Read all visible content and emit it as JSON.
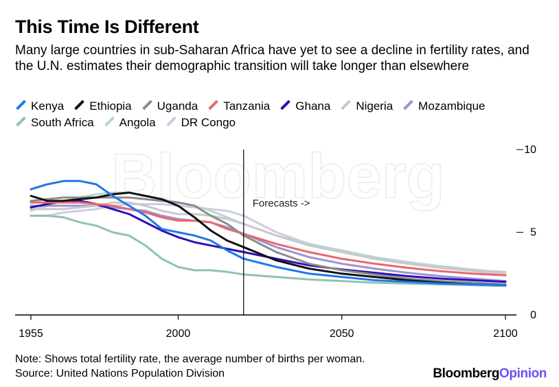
{
  "header": {
    "title": "This Time Is Different",
    "subtitle": "Many large countries in sub-Saharan Africa have yet to see a decline in fertility rates, and the U.N. estimates their demographic transition will take longer than elsewhere"
  },
  "footer": {
    "note": "Note: Shows total fertility rate, the average number of births per woman.",
    "source": "Source: United Nations Population Division",
    "logo_main": "Bloomberg",
    "logo_accent": "Opinion"
  },
  "watermark": "Bloomberg",
  "chart_data": {
    "type": "line",
    "title": "This Time Is Different",
    "xlim": [
      1955,
      2100
    ],
    "ylim": [
      0,
      10
    ],
    "x_ticks": [
      1955,
      2000,
      2050,
      2100
    ],
    "y_ticks": [
      0,
      5,
      10
    ],
    "y_axis_side": "right",
    "legend_position": "top",
    "grid": false,
    "annotation": {
      "x": 2020,
      "label": "Forecasts ->"
    },
    "series": [
      {
        "name": "Kenya",
        "color": "#1f77e8",
        "points": [
          [
            1955,
            7.6
          ],
          [
            1960,
            7.9
          ],
          [
            1965,
            8.1
          ],
          [
            1970,
            8.1
          ],
          [
            1975,
            7.9
          ],
          [
            1980,
            7.2
          ],
          [
            1985,
            6.6
          ],
          [
            1990,
            6.0
          ],
          [
            1995,
            5.2
          ],
          [
            2000,
            5.0
          ],
          [
            2005,
            4.8
          ],
          [
            2010,
            4.5
          ],
          [
            2015,
            3.9
          ],
          [
            2020,
            3.4
          ],
          [
            2030,
            2.9
          ],
          [
            2040,
            2.5
          ],
          [
            2050,
            2.3
          ],
          [
            2060,
            2.1
          ],
          [
            2070,
            2.0
          ],
          [
            2080,
            1.9
          ],
          [
            2090,
            1.85
          ],
          [
            2100,
            1.8
          ]
        ]
      },
      {
        "name": "Ethiopia",
        "color": "#111111",
        "points": [
          [
            1955,
            7.2
          ],
          [
            1960,
            6.9
          ],
          [
            1965,
            6.9
          ],
          [
            1970,
            7.0
          ],
          [
            1975,
            7.1
          ],
          [
            1980,
            7.3
          ],
          [
            1985,
            7.4
          ],
          [
            1990,
            7.2
          ],
          [
            1995,
            7.0
          ],
          [
            2000,
            6.6
          ],
          [
            2005,
            5.9
          ],
          [
            2010,
            5.1
          ],
          [
            2015,
            4.5
          ],
          [
            2020,
            4.1
          ],
          [
            2030,
            3.3
          ],
          [
            2040,
            2.8
          ],
          [
            2050,
            2.5
          ],
          [
            2060,
            2.3
          ],
          [
            2070,
            2.1
          ],
          [
            2080,
            1.95
          ],
          [
            2090,
            1.85
          ],
          [
            2100,
            1.8
          ]
        ]
      },
      {
        "name": "Uganda",
        "color": "#8c8c8c",
        "points": [
          [
            1955,
            6.9
          ],
          [
            1960,
            7.0
          ],
          [
            1965,
            7.1
          ],
          [
            1970,
            7.1
          ],
          [
            1975,
            7.1
          ],
          [
            1980,
            7.1
          ],
          [
            1985,
            7.1
          ],
          [
            1990,
            7.0
          ],
          [
            1995,
            6.9
          ],
          [
            2000,
            6.8
          ],
          [
            2005,
            6.6
          ],
          [
            2010,
            6.0
          ],
          [
            2015,
            5.5
          ],
          [
            2020,
            4.8
          ],
          [
            2030,
            3.8
          ],
          [
            2040,
            3.1
          ],
          [
            2050,
            2.7
          ],
          [
            2060,
            2.45
          ],
          [
            2070,
            2.2
          ],
          [
            2080,
            2.05
          ],
          [
            2090,
            1.95
          ],
          [
            2100,
            1.85
          ]
        ]
      },
      {
        "name": "Tanzania",
        "color": "#e8686c",
        "points": [
          [
            1955,
            6.8
          ],
          [
            1960,
            6.8
          ],
          [
            1965,
            6.8
          ],
          [
            1970,
            6.8
          ],
          [
            1975,
            6.7
          ],
          [
            1980,
            6.6
          ],
          [
            1985,
            6.4
          ],
          [
            1990,
            6.2
          ],
          [
            1995,
            5.9
          ],
          [
            2000,
            5.7
          ],
          [
            2005,
            5.7
          ],
          [
            2010,
            5.6
          ],
          [
            2015,
            5.2
          ],
          [
            2020,
            4.9
          ],
          [
            2030,
            4.3
          ],
          [
            2040,
            3.8
          ],
          [
            2050,
            3.4
          ],
          [
            2060,
            3.1
          ],
          [
            2070,
            2.85
          ],
          [
            2080,
            2.65
          ],
          [
            2090,
            2.5
          ],
          [
            2100,
            2.4
          ]
        ]
      },
      {
        "name": "Ghana",
        "color": "#2a10b8",
        "points": [
          [
            1955,
            6.5
          ],
          [
            1960,
            6.7
          ],
          [
            1965,
            6.9
          ],
          [
            1970,
            6.9
          ],
          [
            1975,
            6.7
          ],
          [
            1980,
            6.4
          ],
          [
            1985,
            6.1
          ],
          [
            1990,
            5.6
          ],
          [
            1995,
            5.1
          ],
          [
            2000,
            4.7
          ],
          [
            2005,
            4.4
          ],
          [
            2010,
            4.2
          ],
          [
            2015,
            4.0
          ],
          [
            2020,
            3.8
          ],
          [
            2030,
            3.4
          ],
          [
            2040,
            3.0
          ],
          [
            2050,
            2.75
          ],
          [
            2060,
            2.55
          ],
          [
            2070,
            2.35
          ],
          [
            2080,
            2.2
          ],
          [
            2090,
            2.1
          ],
          [
            2100,
            2.0
          ]
        ]
      },
      {
        "name": "Nigeria",
        "color": "#c8c8ce",
        "points": [
          [
            1955,
            6.4
          ],
          [
            1960,
            6.4
          ],
          [
            1965,
            6.4
          ],
          [
            1970,
            6.5
          ],
          [
            1975,
            6.6
          ],
          [
            1980,
            6.8
          ],
          [
            1985,
            6.8
          ],
          [
            1990,
            6.6
          ],
          [
            1995,
            6.3
          ],
          [
            2000,
            6.1
          ],
          [
            2005,
            6.1
          ],
          [
            2010,
            6.0
          ],
          [
            2015,
            5.8
          ],
          [
            2020,
            5.5
          ],
          [
            2030,
            4.8
          ],
          [
            2040,
            4.2
          ],
          [
            2050,
            3.8
          ],
          [
            2060,
            3.4
          ],
          [
            2070,
            3.1
          ],
          [
            2080,
            2.85
          ],
          [
            2090,
            2.7
          ],
          [
            2100,
            2.6
          ]
        ]
      },
      {
        "name": "Mozambique",
        "color": "#9d92d0",
        "points": [
          [
            1955,
            6.6
          ],
          [
            1960,
            6.6
          ],
          [
            1965,
            6.6
          ],
          [
            1970,
            6.6
          ],
          [
            1975,
            6.6
          ],
          [
            1980,
            6.5
          ],
          [
            1985,
            6.4
          ],
          [
            1990,
            6.3
          ],
          [
            1995,
            6.0
          ],
          [
            2000,
            5.8
          ],
          [
            2005,
            5.7
          ],
          [
            2010,
            5.6
          ],
          [
            2015,
            5.3
          ],
          [
            2020,
            4.9
          ],
          [
            2030,
            4.1
          ],
          [
            2040,
            3.5
          ],
          [
            2050,
            3.1
          ],
          [
            2060,
            2.8
          ],
          [
            2070,
            2.55
          ],
          [
            2080,
            2.35
          ],
          [
            2090,
            2.2
          ],
          [
            2100,
            2.05
          ]
        ]
      },
      {
        "name": "South Africa",
        "color": "#8fc2b6",
        "points": [
          [
            1955,
            6.0
          ],
          [
            1960,
            6.0
          ],
          [
            1965,
            5.9
          ],
          [
            1970,
            5.6
          ],
          [
            1975,
            5.4
          ],
          [
            1980,
            5.0
          ],
          [
            1985,
            4.8
          ],
          [
            1990,
            4.2
          ],
          [
            1995,
            3.4
          ],
          [
            2000,
            2.9
          ],
          [
            2005,
            2.7
          ],
          [
            2010,
            2.7
          ],
          [
            2015,
            2.6
          ],
          [
            2020,
            2.45
          ],
          [
            2030,
            2.3
          ],
          [
            2040,
            2.15
          ],
          [
            2050,
            2.05
          ],
          [
            2060,
            1.95
          ],
          [
            2070,
            1.9
          ],
          [
            2080,
            1.85
          ],
          [
            2090,
            1.8
          ],
          [
            2100,
            1.75
          ]
        ]
      },
      {
        "name": "Angola",
        "color": "#b5d8cc",
        "points": [
          [
            1955,
            6.3
          ],
          [
            1960,
            6.6
          ],
          [
            1965,
            6.9
          ],
          [
            1970,
            7.1
          ],
          [
            1975,
            7.3
          ],
          [
            1980,
            7.4
          ],
          [
            1985,
            7.4
          ],
          [
            1990,
            7.2
          ],
          [
            1995,
            7.0
          ],
          [
            2000,
            6.8
          ],
          [
            2005,
            6.6
          ],
          [
            2010,
            6.3
          ],
          [
            2015,
            5.9
          ],
          [
            2020,
            5.5
          ],
          [
            2030,
            4.8
          ],
          [
            2040,
            4.3
          ],
          [
            2050,
            3.9
          ],
          [
            2060,
            3.5
          ],
          [
            2070,
            3.2
          ],
          [
            2080,
            2.95
          ],
          [
            2090,
            2.75
          ],
          [
            2100,
            2.55
          ]
        ]
      },
      {
        "name": "DR Congo",
        "color": "#cfcbe4",
        "points": [
          [
            1955,
            6.0
          ],
          [
            1960,
            6.0
          ],
          [
            1965,
            6.2
          ],
          [
            1970,
            6.3
          ],
          [
            1975,
            6.4
          ],
          [
            1980,
            6.6
          ],
          [
            1985,
            6.7
          ],
          [
            1990,
            6.7
          ],
          [
            1995,
            6.7
          ],
          [
            2000,
            6.6
          ],
          [
            2005,
            6.5
          ],
          [
            2010,
            6.4
          ],
          [
            2015,
            6.3
          ],
          [
            2020,
            6.0
          ],
          [
            2030,
            5.0
          ],
          [
            2040,
            4.3
          ],
          [
            2050,
            3.8
          ],
          [
            2060,
            3.4
          ],
          [
            2070,
            3.1
          ],
          [
            2080,
            2.85
          ],
          [
            2090,
            2.65
          ],
          [
            2100,
            2.45
          ]
        ]
      }
    ]
  }
}
